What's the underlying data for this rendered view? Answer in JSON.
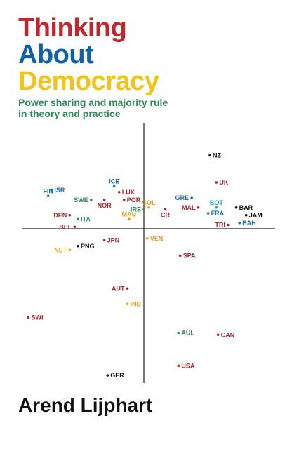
{
  "cover": {
    "title_lines": [
      {
        "text": "Thinking",
        "color": "#c0272d"
      },
      {
        "text": "About",
        "color": "#1160a8"
      },
      {
        "text": "Democracy",
        "color": "#f2c318"
      }
    ],
    "subtitle_lines": [
      "Power sharing and majority rule",
      "in theory and practice"
    ],
    "subtitle_color": "#2e8b57",
    "author": "Arend Lijphart"
  },
  "chart_data": {
    "type": "scatter",
    "axes": "crossing axes, unlabeled",
    "points": [
      {
        "label": "NZ",
        "x": 2.0,
        "y": 1.9,
        "color": "#111111"
      },
      {
        "label": "UK",
        "x": 2.2,
        "y": 1.2,
        "color": "#a8242a"
      },
      {
        "label": "ISR",
        "x": -2.8,
        "y": 1.0,
        "color": "#1a6fb0"
      },
      {
        "label": "FIN",
        "x": -2.9,
        "y": 0.85,
        "color": "#1a6fb0"
      },
      {
        "label": "ICE",
        "x": -0.9,
        "y": 1.1,
        "color": "#1a6fb0"
      },
      {
        "label": "LUX",
        "x": -0.75,
        "y": 0.95,
        "color": "#a8242a"
      },
      {
        "label": "SWE",
        "x": -1.6,
        "y": 0.75,
        "color": "#2e8b57"
      },
      {
        "label": "NOR",
        "x": -1.2,
        "y": 0.75,
        "color": "#a8242a"
      },
      {
        "label": "POR",
        "x": -0.6,
        "y": 0.75,
        "color": "#a8242a"
      },
      {
        "label": "GRE",
        "x": 1.45,
        "y": 0.8,
        "color": "#1a6fb0"
      },
      {
        "label": "BOT",
        "x": 2.2,
        "y": 0.55,
        "color": "#1a9fd0"
      },
      {
        "label": "COL",
        "x": 0.15,
        "y": 0.55,
        "color": "#e39a1e"
      },
      {
        "label": "IRE",
        "x": 0.0,
        "y": 0.5,
        "color": "#2e8b57"
      },
      {
        "label": "CR",
        "x": 0.65,
        "y": 0.5,
        "color": "#a8242a"
      },
      {
        "label": "MAL",
        "x": 1.65,
        "y": 0.55,
        "color": "#a8242a"
      },
      {
        "label": "BAR",
        "x": 2.8,
        "y": 0.55,
        "color": "#111111"
      },
      {
        "label": "FRA",
        "x": 1.95,
        "y": 0.4,
        "color": "#1a6fb0"
      },
      {
        "label": "JAM",
        "x": 3.1,
        "y": 0.35,
        "color": "#111111"
      },
      {
        "label": "DEN",
        "x": -2.25,
        "y": 0.35,
        "color": "#a8242a"
      },
      {
        "label": "ITA",
        "x": -2.0,
        "y": 0.25,
        "color": "#2e8b57"
      },
      {
        "label": "MAU",
        "x": -0.45,
        "y": 0.25,
        "color": "#e39a1e"
      },
      {
        "label": "TRI",
        "x": 2.55,
        "y": 0.1,
        "color": "#a8242a"
      },
      {
        "label": "BAH",
        "x": 2.9,
        "y": 0.15,
        "color": "#1a6fb0"
      },
      {
        "label": "BEL",
        "x": -2.1,
        "y": 0.05,
        "color": "#a8242a"
      },
      {
        "label": "JPN",
        "x": -1.2,
        "y": -0.3,
        "color": "#a8242a"
      },
      {
        "label": "VEN",
        "x": 0.1,
        "y": -0.25,
        "color": "#e39a1e"
      },
      {
        "label": "PNG",
        "x": -2.0,
        "y": -0.45,
        "color": "#111111"
      },
      {
        "label": "NET",
        "x": -2.25,
        "y": -0.55,
        "color": "#e39a1e"
      },
      {
        "label": "SPA",
        "x": 1.1,
        "y": -0.7,
        "color": "#a8242a"
      },
      {
        "label": "AUT",
        "x": -0.5,
        "y": -1.55,
        "color": "#a8242a"
      },
      {
        "label": "IND",
        "x": -0.5,
        "y": -1.95,
        "color": "#e39a1e"
      },
      {
        "label": "SWI",
        "x": -3.5,
        "y": -2.3,
        "color": "#a8242a"
      },
      {
        "label": "AUL",
        "x": 1.05,
        "y": -2.7,
        "color": "#2e8b57"
      },
      {
        "label": "CAN",
        "x": 2.25,
        "y": -2.75,
        "color": "#a8242a"
      },
      {
        "label": "USA",
        "x": 1.05,
        "y": -3.55,
        "color": "#a8242a"
      },
      {
        "label": "GER",
        "x": -1.1,
        "y": -3.8,
        "color": "#111111"
      }
    ]
  }
}
